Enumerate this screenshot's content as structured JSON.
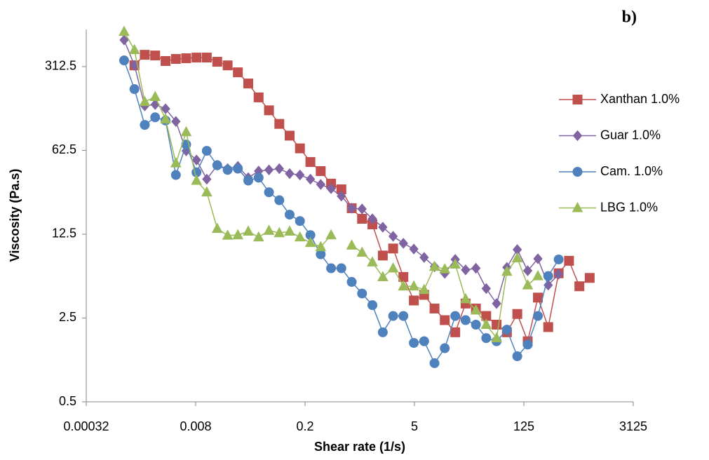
{
  "chart_data": {
    "type": "line",
    "panel_label": "b)",
    "x_label": "Shear rate (1/s)",
    "y_label": "Viscosity (Pa.s)",
    "log_x": true,
    "log_y": true,
    "grid": false,
    "legend": "right",
    "xlim": [
      0.00032,
      3125
    ],
    "xticks": [
      0.00032,
      0.008,
      0.2,
      5,
      125,
      3125
    ],
    "ylim": [
      0.5,
      638
    ],
    "yticks": [
      0.5,
      2.5,
      12.5,
      62.5,
      312.5
    ],
    "x": [
      0.000975,
      0.00132,
      0.00179,
      0.00243,
      0.0033,
      0.00447,
      0.00605,
      0.0082,
      0.0111,
      0.0151,
      0.0205,
      0.0277,
      0.0376,
      0.051,
      0.0692,
      0.0938,
      0.127,
      0.172,
      0.234,
      0.317,
      0.43,
      0.582,
      0.789,
      1.07,
      1.45,
      1.97,
      2.67,
      3.61,
      4.91,
      6.65,
      9.02,
      12.2,
      16.6,
      22.5,
      30.5,
      41.3,
      56,
      75.9,
      103,
      140,
      189,
      256,
      348,
      472,
      640,
      867
    ],
    "series": [
      {
        "name": "Xanthan 1.0%",
        "color": "#c0504d",
        "marker": "square",
        "values": [
          null,
          320,
          392,
          387,
          348,
          362,
          367,
          372,
          372,
          343,
          320,
          280,
          226,
          173,
          135,
          104,
          83,
          65,
          50,
          42,
          33,
          29.6,
          20.6,
          16.8,
          15.1,
          8.3,
          9.5,
          5.5,
          3.5,
          3.9,
          3.0,
          2.4,
          1.9,
          3.3,
          3.0,
          2.6,
          2.2,
          1.9,
          2.7,
          1.6,
          3.7,
          2.1,
          5.9,
          7.5,
          4.6,
          5.4
        ]
      },
      {
        "name": "Guar 1.0%",
        "color": "#8064a2",
        "marker": "diamond",
        "values": [
          521,
          320,
          147,
          151,
          139,
          109,
          62,
          52,
          36,
          47,
          44,
          46,
          37,
          42,
          43,
          44,
          40,
          39,
          36,
          32.5,
          30,
          26,
          20.6,
          20.3,
          16.8,
          14.3,
          12.0,
          10.5,
          9.4,
          8.0,
          6.7,
          5.9,
          7.7,
          6.3,
          6.5,
          4.4,
          3.3,
          6.6,
          9.3,
          6.2,
          7.8,
          4.7,
          5.8,
          null,
          null,
          null
        ]
      },
      {
        "name": "Cam. 1.0%",
        "color": "#4f81bd",
        "marker": "circle",
        "values": [
          352,
          203,
          102,
          118,
          111,
          39,
          70,
          41,
          62,
          47,
          43,
          44,
          35,
          37,
          28,
          24,
          18.2,
          16.1,
          12.3,
          8.5,
          6.5,
          6.5,
          5.0,
          4.0,
          3.2,
          1.9,
          2.6,
          2.6,
          1.55,
          1.6,
          1.05,
          1.4,
          2.6,
          2.4,
          2.2,
          1.7,
          1.6,
          2.0,
          1.2,
          1.5,
          2.6,
          5.6,
          7.7,
          null,
          null,
          null
        ]
      },
      {
        "name": "LBG 1.0%",
        "color": "#9bbb59",
        "marker": "triangle",
        "values": [
          612,
          431,
          159,
          175,
          114,
          49,
          89,
          35,
          28,
          13.9,
          12.2,
          12.3,
          13.2,
          11.8,
          13.4,
          12.8,
          13.2,
          11.8,
          10.6,
          9.8,
          12.3,
          null,
          10.1,
          8.8,
          7.3,
          5.5,
          6.5,
          4.6,
          4.6,
          4.3,
          6.7,
          6.4,
          7.0,
          3.6,
          2.9,
          2.2,
          1.7,
          6.1,
          7.9,
          4.7,
          5.6,
          null,
          null,
          null,
          null,
          null
        ]
      }
    ]
  }
}
